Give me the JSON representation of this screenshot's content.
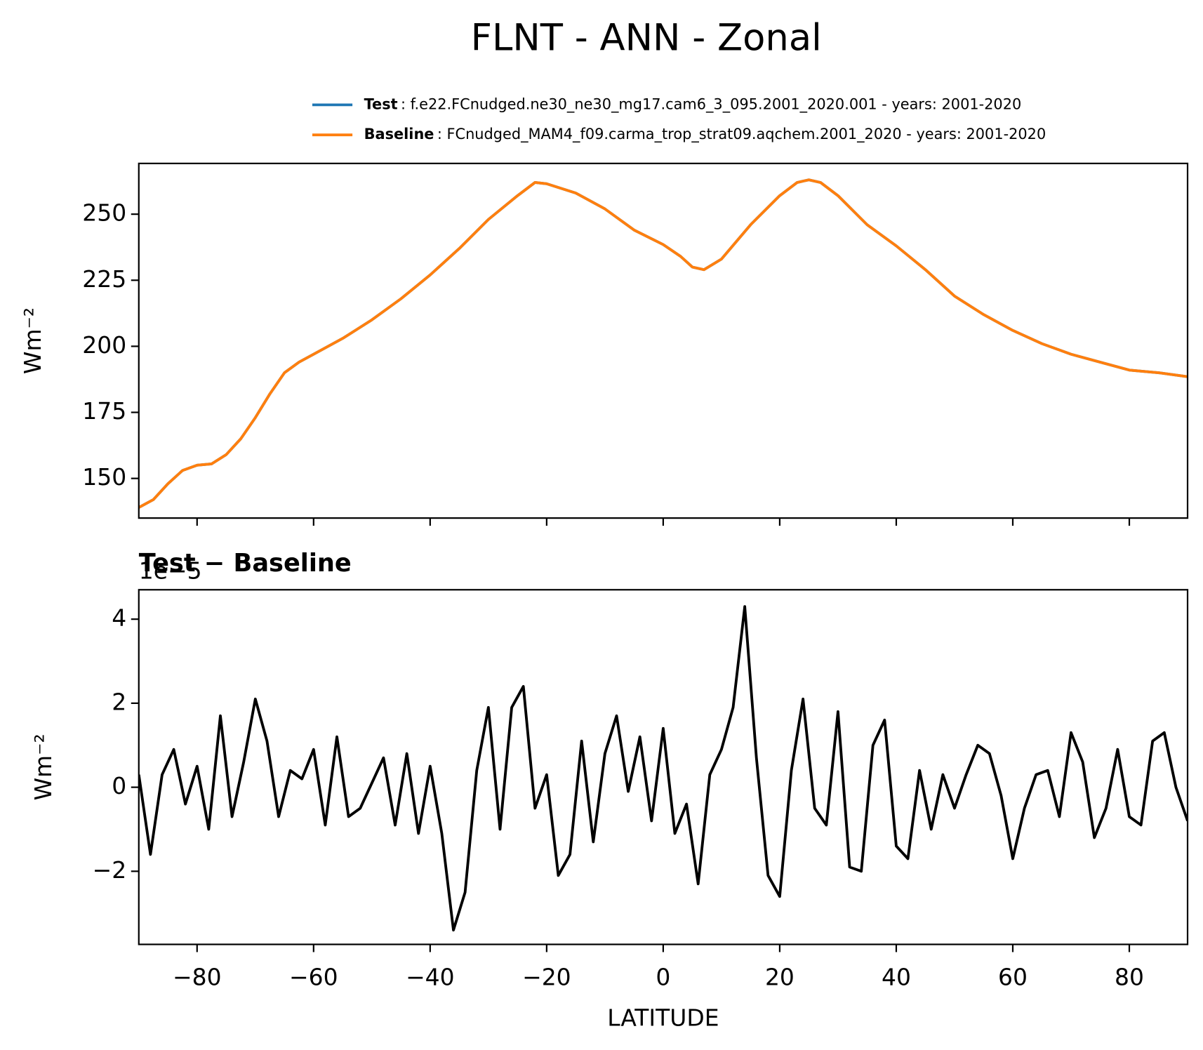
{
  "chart_data": [
    {
      "type": "line",
      "title": "FLNT - ANN - Zonal",
      "ylabel": "Wm⁻²",
      "x": [
        -90,
        -87.5,
        -85,
        -82.5,
        -80,
        -77.5,
        -75,
        -72.5,
        -70,
        -67.5,
        -65,
        -62.5,
        -60,
        -55,
        -50,
        -45,
        -40,
        -35,
        -30,
        -25,
        -22,
        -20,
        -15,
        -10,
        -5,
        0,
        3,
        5,
        7,
        10,
        15,
        20,
        23,
        25,
        27,
        30,
        35,
        40,
        45,
        50,
        55,
        60,
        65,
        70,
        75,
        80,
        85,
        90
      ],
      "series": [
        {
          "name": "Test",
          "legend_label": ": f.e22.FCnudged.ne30_ne30_mg17.cam6_3_095.2001_2020.001 - years: 2001-2020",
          "color": "#1f77b4",
          "values": [
            139,
            142,
            148,
            153,
            155,
            155.5,
            159,
            165,
            173,
            182,
            190,
            194,
            197,
            203,
            210,
            218,
            227,
            237,
            248,
            257,
            262,
            261.5,
            258,
            252,
            244,
            238.5,
            234,
            230,
            229,
            233,
            246,
            257,
            262,
            263,
            262,
            257,
            246,
            238,
            229,
            219,
            212,
            206,
            201,
            197,
            194,
            191,
            190,
            188.5
          ]
        },
        {
          "name": "Baseline",
          "legend_label": ": FCnudged_MAM4_f09.carma_trop_strat09.aqchem.2001_2020 - years: 2001-2020",
          "color": "#ff7f0e",
          "values": [
            139,
            142,
            148,
            153,
            155,
            155.5,
            159,
            165,
            173,
            182,
            190,
            194,
            197,
            203,
            210,
            218,
            227,
            237,
            248,
            257,
            262,
            261.5,
            258,
            252,
            244,
            238.5,
            234,
            230,
            229,
            233,
            246,
            257,
            262,
            263,
            262,
            257,
            246,
            238,
            229,
            219,
            212,
            206,
            201,
            197,
            194,
            191,
            190,
            188.5
          ]
        }
      ],
      "xlim": [
        -90,
        90
      ],
      "xticks": [
        -80,
        -60,
        -40,
        -20,
        0,
        20,
        40,
        60,
        80
      ],
      "xtick_labels": false,
      "ylim": [
        135,
        269.2
      ],
      "yticks": [
        150,
        175,
        200,
        225,
        250
      ]
    },
    {
      "type": "line",
      "title": "Test − Baseline",
      "offset_text": "1e−5",
      "ylabel": "Wm⁻²",
      "xlabel": "LATITUDE",
      "x": [
        -90,
        -88,
        -86,
        -84,
        -82,
        -80,
        -78,
        -76,
        -74,
        -72,
        -70,
        -68,
        -66,
        -64,
        -62,
        -60,
        -58,
        -56,
        -54,
        -52,
        -50,
        -48,
        -46,
        -44,
        -42,
        -40,
        -38,
        -36,
        -34,
        -32,
        -30,
        -28,
        -26,
        -24,
        -22,
        -20,
        -18,
        -16,
        -14,
        -12,
        -10,
        -8,
        -6,
        -4,
        -2,
        0,
        2,
        4,
        6,
        8,
        10,
        12,
        14,
        16,
        18,
        20,
        22,
        24,
        26,
        28,
        30,
        32,
        34,
        36,
        38,
        40,
        42,
        44,
        46,
        48,
        50,
        52,
        54,
        56,
        58,
        60,
        62,
        64,
        66,
        68,
        70,
        72,
        74,
        76,
        78,
        80,
        82,
        84,
        86,
        88,
        90
      ],
      "series": [
        {
          "name": "Test − Baseline",
          "color": "#000000",
          "values": [
            0.3,
            -1.6,
            0.3,
            0.9,
            -0.4,
            0.5,
            -1.0,
            1.7,
            -0.7,
            0.6,
            2.1,
            1.1,
            -0.7,
            0.4,
            0.2,
            0.9,
            -0.9,
            1.2,
            -0.7,
            -0.5,
            0.1,
            0.7,
            -0.9,
            0.8,
            -1.1,
            0.5,
            -1.1,
            -3.4,
            -2.5,
            0.4,
            1.9,
            -1.0,
            1.9,
            2.4,
            -0.5,
            0.3,
            -2.1,
            -1.6,
            1.1,
            -1.3,
            0.8,
            1.7,
            -0.1,
            1.2,
            -0.8,
            1.4,
            -1.1,
            -0.4,
            -2.3,
            0.3,
            0.9,
            1.9,
            4.3,
            0.7,
            -2.1,
            -2.6,
            0.4,
            2.1,
            -0.5,
            -0.9,
            1.8,
            -1.9,
            -2.0,
            1.0,
            1.6,
            -1.4,
            -1.7,
            0.4,
            -1.0,
            0.3,
            -0.5,
            0.3,
            1.0,
            0.8,
            -0.2,
            -1.7,
            -0.5,
            0.3,
            0.4,
            -0.7,
            1.3,
            0.6,
            -1.2,
            -0.5,
            0.9,
            -0.7,
            -0.9,
            1.1,
            1.3,
            0.0,
            -0.8
          ]
        }
      ],
      "xlim": [
        -90,
        90
      ],
      "xticks": [
        {
          "value": -80,
          "label": "−80"
        },
        {
          "value": -60,
          "label": "−60"
        },
        {
          "value": -40,
          "label": "−40"
        },
        {
          "value": -20,
          "label": "−20"
        },
        0,
        20,
        40,
        60,
        80
      ],
      "ylim": [
        -3.74,
        4.7
      ],
      "yticks": [
        {
          "value": -2,
          "label": "−2"
        },
        0,
        2,
        4
      ]
    }
  ]
}
